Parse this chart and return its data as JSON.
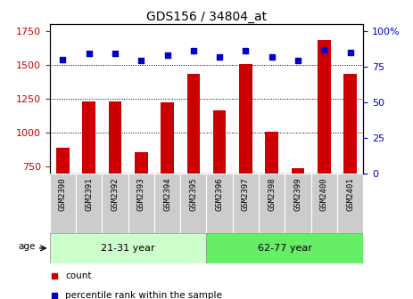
{
  "title": "GDS156 / 34804_at",
  "samples": [
    "GSM2390",
    "GSM2391",
    "GSM2392",
    "GSM2393",
    "GSM2394",
    "GSM2395",
    "GSM2396",
    "GSM2397",
    "GSM2398",
    "GSM2399",
    "GSM2400",
    "GSM2401"
  ],
  "counts": [
    890,
    1230,
    1230,
    855,
    1225,
    1430,
    1165,
    1505,
    1010,
    740,
    1680,
    1430
  ],
  "percentiles": [
    80,
    84,
    84,
    79,
    83,
    86,
    82,
    86,
    82,
    79,
    87,
    85
  ],
  "bar_color": "#cc0000",
  "dot_color": "#0000cc",
  "group1_label": "21-31 year",
  "group2_label": "62-77 year",
  "group1_count": 6,
  "group2_count": 6,
  "group_color_light": "#ccffcc",
  "group_color_medium": "#66ee66",
  "tick_bg_color": "#cccccc",
  "ylim_left": [
    700,
    1800
  ],
  "ylim_right": [
    0,
    105
  ],
  "yticks_left": [
    750,
    1000,
    1250,
    1500,
    1750
  ],
  "yticks_right": [
    0,
    25,
    50,
    75,
    100
  ],
  "ytick_labels_right": [
    "0",
    "25",
    "50",
    "75",
    "100%"
  ],
  "legend_count_label": "count",
  "legend_pct_label": "percentile rank within the sample",
  "gridline_y": [
    1000,
    1250,
    1500
  ],
  "bar_bottom": 700
}
